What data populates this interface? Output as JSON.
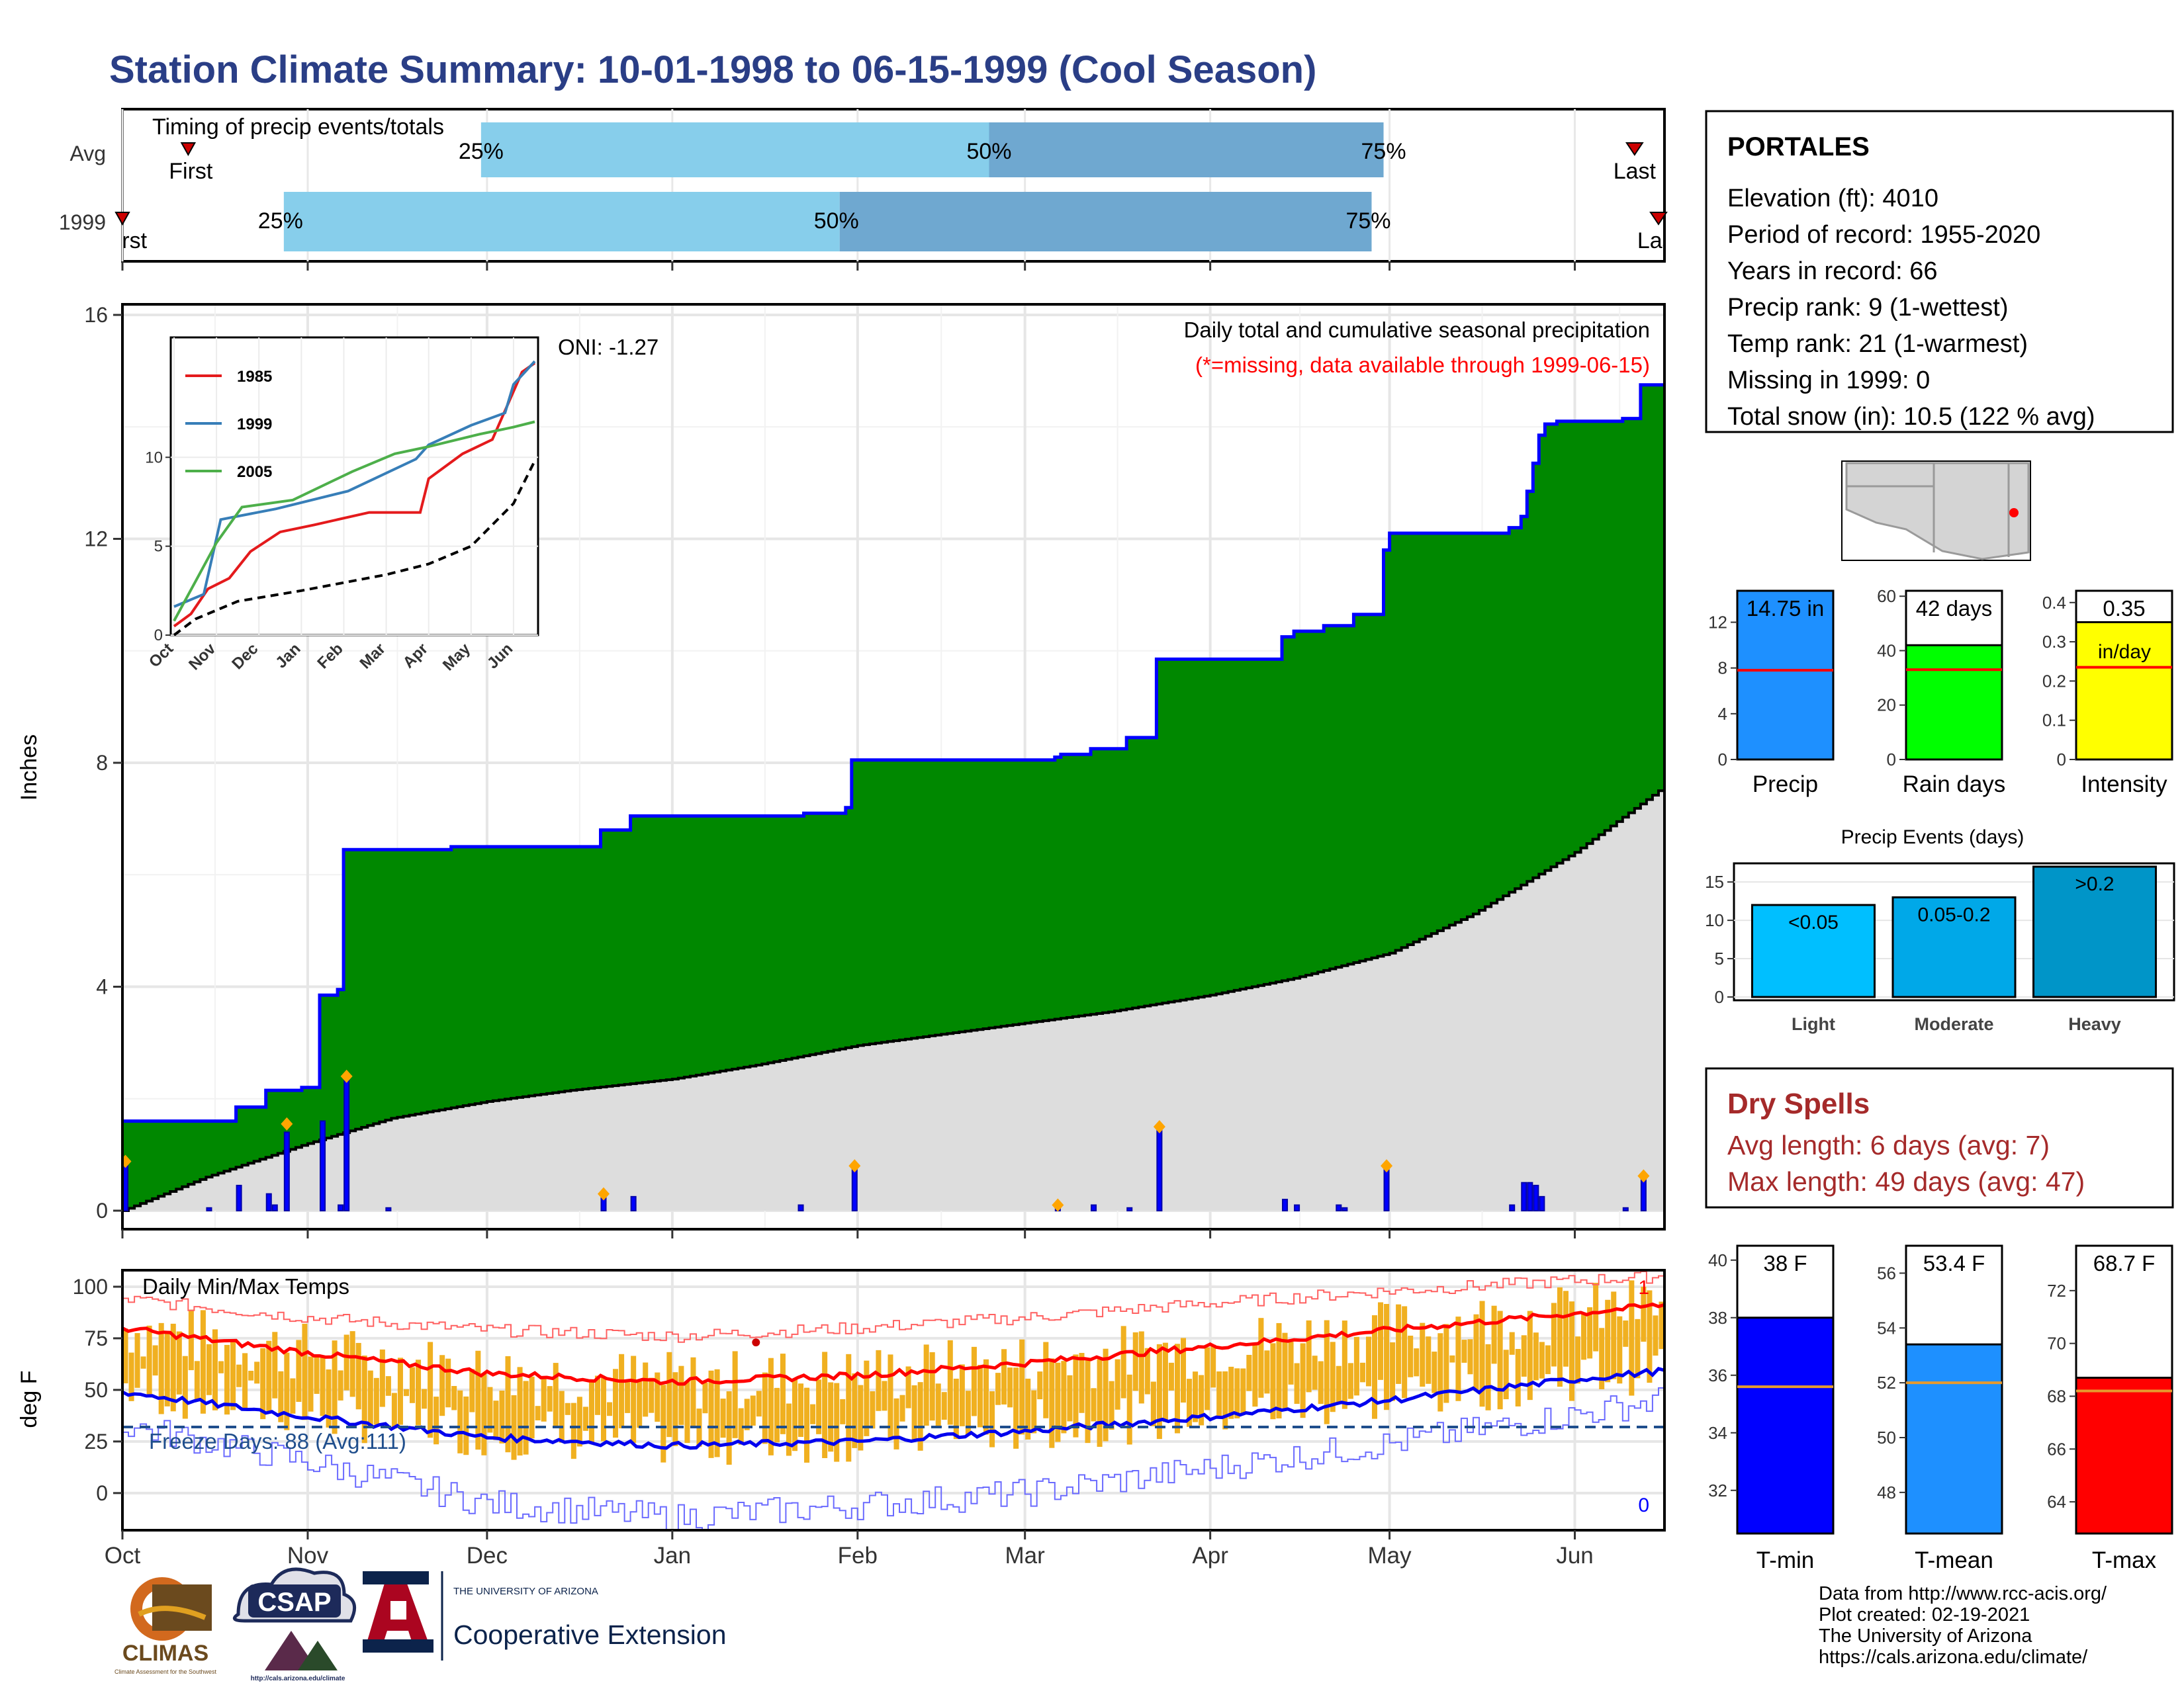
{
  "title": "Station Climate Summary: 10-01-1998 to 06-15-1999 (Cool Season)",
  "timing": {
    "label": "Timing of precip events/totals",
    "rows": [
      {
        "name": "Avg",
        "first_date": "1998-10-12",
        "last_date": "1999-06-11",
        "q25": "1998-11-30",
        "q50": "1999-02-23",
        "q75": "1999-04-30"
      },
      {
        "name": "1999",
        "first_date": "1998-10-01",
        "last_date": "1999-06-15",
        "q25": "1998-10-28",
        "q50": "1999-01-29",
        "q75": "1999-04-28"
      }
    ],
    "first_label": "First",
    "last_label": "Last",
    "pct_labels": [
      "25%",
      "50%",
      "75%"
    ],
    "colors": {
      "light": "#87ceeb",
      "dark": "#6fa8d0"
    }
  },
  "main_chart": {
    "ylabel": "Inches",
    "yticks": [
      0,
      4,
      8,
      12,
      16
    ],
    "ylim": [
      0,
      16
    ],
    "top_label": "Daily total and cumulative seasonal precipitation",
    "missing_note": "(*=missing, data available through 1999-06-15)",
    "oni": "ONI: -1.27",
    "months": [
      "Oct",
      "Nov",
      "Dec",
      "Jan",
      "Feb",
      "Mar",
      "Apr",
      "May",
      "Jun"
    ],
    "colors": {
      "cumulative": "#008800",
      "outline": "#0000ff",
      "normal": "#dddddd",
      "bars": "#0000ff",
      "diamond": "#ffa500"
    }
  },
  "chart_data": [
    {
      "type": "area",
      "name": "cumulative-precip-1999",
      "x_start": "1998-10-01",
      "steps": [
        [
          "1998-10-01",
          1.6
        ],
        [
          "1998-10-20",
          1.85
        ],
        [
          "1998-10-21",
          1.85
        ],
        [
          "1998-10-25",
          2.15
        ],
        [
          "1998-10-26",
          2.15
        ],
        [
          "1998-10-31",
          2.2
        ],
        [
          "1998-11-01",
          2.2
        ],
        [
          "1998-11-03",
          3.85
        ],
        [
          "1998-11-06",
          3.95
        ],
        [
          "1998-11-07",
          6.45
        ],
        [
          "1998-11-25",
          6.5
        ],
        [
          "1998-12-20",
          6.8
        ],
        [
          "1998-12-25",
          7.05
        ],
        [
          "1999-01-22",
          7.05
        ],
        [
          "1999-01-23",
          7.1
        ],
        [
          "1999-01-30",
          7.2
        ],
        [
          "1999-01-31",
          8.05
        ],
        [
          "1999-03-06",
          8.1
        ],
        [
          "1999-03-07",
          8.15
        ],
        [
          "1999-03-12",
          8.25
        ],
        [
          "1999-03-18",
          8.45
        ],
        [
          "1999-03-23",
          9.85
        ],
        [
          "1999-04-10",
          9.85
        ],
        [
          "1999-04-13",
          10.25
        ],
        [
          "1999-04-15",
          10.35
        ],
        [
          "1999-04-20",
          10.45
        ],
        [
          "1999-04-25",
          10.65
        ],
        [
          "1999-04-30",
          11.8
        ],
        [
          "1999-05-01",
          12.1
        ],
        [
          "1999-05-21",
          12.2
        ],
        [
          "1999-05-23",
          12.4
        ],
        [
          "1999-05-24",
          12.85
        ],
        [
          "1999-05-25",
          13.35
        ],
        [
          "1999-05-26",
          13.85
        ],
        [
          "1999-05-27",
          14.05
        ],
        [
          "1999-05-29",
          14.1
        ],
        [
          "1999-06-09",
          14.15
        ],
        [
          "1999-06-12",
          14.75
        ],
        [
          "1999-06-15",
          14.75
        ]
      ],
      "total": 14.75
    },
    {
      "type": "area",
      "name": "normal-cumulative-precip",
      "points": [
        [
          "1998-10-01",
          0.0
        ],
        [
          "1998-10-15",
          0.6
        ],
        [
          "1998-11-01",
          1.2
        ],
        [
          "1998-11-15",
          1.65
        ],
        [
          "1998-12-01",
          1.95
        ],
        [
          "1998-12-15",
          2.15
        ],
        [
          "1999-01-01",
          2.35
        ],
        [
          "1999-01-15",
          2.6
        ],
        [
          "1999-02-01",
          2.95
        ],
        [
          "1999-02-15",
          3.15
        ],
        [
          "1999-03-01",
          3.35
        ],
        [
          "1999-03-15",
          3.55
        ],
        [
          "1999-04-01",
          3.85
        ],
        [
          "1999-04-15",
          4.15
        ],
        [
          "1999-05-01",
          4.6
        ],
        [
          "1999-05-15",
          5.3
        ],
        [
          "1999-06-01",
          6.4
        ],
        [
          "1999-06-15",
          7.5
        ]
      ]
    },
    {
      "type": "bar",
      "name": "daily-precip",
      "days": [
        [
          "1998-10-01",
          0.8
        ],
        [
          "1998-10-15",
          0.05
        ],
        [
          "1998-10-20",
          0.45
        ],
        [
          "1998-10-25",
          0.3
        ],
        [
          "1998-10-26",
          0.1
        ],
        [
          "1998-10-28",
          1.4
        ],
        [
          "1998-11-03",
          1.6
        ],
        [
          "1998-11-06",
          0.1
        ],
        [
          "1998-11-07",
          2.35
        ],
        [
          "1998-11-14",
          0.05
        ],
        [
          "1998-12-20",
          0.25
        ],
        [
          "1998-12-25",
          0.25
        ],
        [
          "1999-01-22",
          0.1
        ],
        [
          "1999-01-31",
          0.75
        ],
        [
          "1999-03-06",
          0.05
        ],
        [
          "1999-03-12",
          0.1
        ],
        [
          "1999-03-18",
          0.05
        ],
        [
          "1999-03-23",
          1.45
        ],
        [
          "1999-04-13",
          0.2
        ],
        [
          "1999-04-15",
          0.1
        ],
        [
          "1999-04-22",
          0.1
        ],
        [
          "1999-04-23",
          0.05
        ],
        [
          "1999-04-30",
          0.75
        ],
        [
          "1999-05-21",
          0.1
        ],
        [
          "1999-05-23",
          0.5
        ],
        [
          "1999-05-24",
          0.5
        ],
        [
          "1999-05-25",
          0.45
        ],
        [
          "1999-05-26",
          0.25
        ],
        [
          "1999-06-09",
          0.05
        ],
        [
          "1999-06-12",
          0.55
        ]
      ],
      "markers": [
        [
          "1998-10-01",
          0.88
        ],
        [
          "1998-10-28",
          1.55
        ],
        [
          "1998-11-07",
          2.4
        ],
        [
          "1998-12-20",
          0.3
        ],
        [
          "1999-01-31",
          0.8
        ],
        [
          "1999-03-06",
          0.1
        ],
        [
          "1999-03-23",
          1.5
        ],
        [
          "1999-04-30",
          0.8
        ],
        [
          "1999-06-12",
          0.62
        ]
      ]
    },
    {
      "type": "line",
      "name": "temps",
      "title": "Daily Min/Max Temps",
      "ylabel": "deg F",
      "yticks": [
        0,
        25,
        50,
        75,
        100
      ],
      "ylim": [
        -18,
        108
      ],
      "freeze_line": 32,
      "freeze_label": "Freeze Days: 88 (Avg:111)",
      "record_max_count": "1",
      "record_min_count": "0",
      "avg_max": [
        [
          "1998-10-01",
          80
        ],
        [
          "1998-11-01",
          68
        ],
        [
          "1998-12-01",
          58
        ],
        [
          "1999-01-01",
          54
        ],
        [
          "1999-02-01",
          57
        ],
        [
          "1999-03-01",
          63
        ],
        [
          "1999-04-01",
          71
        ],
        [
          "1999-05-01",
          79
        ],
        [
          "1999-06-01",
          87
        ],
        [
          "1999-06-15",
          91
        ]
      ],
      "avg_min": [
        [
          "1998-10-01",
          49
        ],
        [
          "1998-11-01",
          37
        ],
        [
          "1998-12-01",
          27
        ],
        [
          "1999-01-01",
          23
        ],
        [
          "1999-02-01",
          25
        ],
        [
          "1999-03-01",
          30
        ],
        [
          "1999-04-01",
          37
        ],
        [
          "1999-05-01",
          45
        ],
        [
          "1999-06-01",
          55
        ],
        [
          "1999-06-15",
          59
        ]
      ],
      "record_max": [
        [
          "1998-10-01",
          94
        ],
        [
          "1998-11-01",
          85
        ],
        [
          "1998-12-01",
          79
        ],
        [
          "1999-01-01",
          76
        ],
        [
          "1999-02-01",
          80
        ],
        [
          "1999-03-01",
          85
        ],
        [
          "1999-04-01",
          92
        ],
        [
          "1999-05-01",
          98
        ],
        [
          "1999-06-01",
          103
        ],
        [
          "1999-06-15",
          105
        ]
      ],
      "record_min": [
        [
          "1998-10-01",
          33
        ],
        [
          "1998-11-01",
          15
        ],
        [
          "1998-12-01",
          -5
        ],
        [
          "1999-01-01",
          -12
        ],
        [
          "1999-02-01",
          -6
        ],
        [
          "1999-03-01",
          0
        ],
        [
          "1999-04-01",
          12
        ],
        [
          "1999-05-01",
          24
        ],
        [
          "1999-06-01",
          38
        ],
        [
          "1999-06-15",
          45
        ]
      ],
      "bar_color": "#f0b020"
    },
    {
      "type": "bar",
      "name": "season-precip-stats",
      "categories": [
        "Precip",
        "Rain days",
        "Intensity"
      ],
      "values": [
        14.75,
        42,
        0.35
      ],
      "averages": [
        7.8,
        33,
        0.235
      ],
      "value_labels": [
        "14.75 in",
        "42 days",
        "0.35"
      ],
      "unit_note": "in/day",
      "ylims": [
        [
          0,
          14.75
        ],
        [
          0,
          62
        ],
        [
          0,
          0.43
        ]
      ],
      "yticks": [
        [
          0,
          4,
          8,
          12
        ],
        [
          0,
          20,
          40,
          60
        ],
        [
          0.0,
          0.1,
          0.2,
          0.3,
          0.4
        ]
      ],
      "colors": [
        "#1e90ff",
        "#00ff00",
        "#ffff00"
      ]
    },
    {
      "type": "bar",
      "name": "precip-events",
      "title": "Precip Events (days)",
      "categories": [
        "Light",
        "Moderate",
        "Heavy"
      ],
      "values": [
        12,
        13,
        17
      ],
      "value_labels": [
        "<0.05",
        "0.05-0.2",
        ">0.2"
      ],
      "ylim": [
        0,
        17
      ],
      "yticks": [
        0,
        5,
        10,
        15
      ],
      "colors": [
        "#00bfff",
        "#00a8e8",
        "#0095c8"
      ]
    },
    {
      "type": "bar",
      "name": "season-temp-stats",
      "categories": [
        "T-min",
        "T-mean",
        "T-max"
      ],
      "values": [
        38,
        53.4,
        68.7
      ],
      "averages": [
        35.6,
        52.0,
        68.2
      ],
      "value_labels": [
        "38 F",
        "53.4 F",
        "68.7 F"
      ],
      "ylims": [
        [
          30.5,
          40.5
        ],
        [
          46.5,
          57
        ],
        [
          62.8,
          73.7
        ]
      ],
      "yticks": [
        [
          32,
          34,
          36,
          38,
          40
        ],
        [
          48,
          50,
          52,
          54,
          56
        ],
        [
          64,
          66,
          68,
          70,
          72
        ]
      ],
      "colors": [
        "#0000ff",
        "#1e90ff",
        "#ff0000"
      ]
    },
    {
      "type": "line",
      "name": "inset-cumulative",
      "ylim": [
        0,
        16
      ],
      "yticks": [
        0,
        5,
        10
      ],
      "xticks": [
        "Oct",
        "Nov",
        "Dec",
        "Jan",
        "Feb",
        "Mar",
        "Apr",
        "May",
        "Jun"
      ],
      "series": [
        {
          "name": "1985",
          "color": "#e41a1c",
          "points": [
            [
              0,
              0.5
            ],
            [
              0.4,
              1.2
            ],
            [
              0.8,
              2.6
            ],
            [
              1.3,
              3.2
            ],
            [
              1.8,
              4.7
            ],
            [
              2.5,
              5.8
            ],
            [
              3.3,
              6.2
            ],
            [
              4.6,
              6.9
            ],
            [
              5.8,
              6.9
            ],
            [
              6.0,
              8.8
            ],
            [
              6.8,
              10.2
            ],
            [
              7.5,
              11.0
            ],
            [
              8.2,
              14.8
            ],
            [
              8.5,
              15.3
            ]
          ]
        },
        {
          "name": "1999",
          "color": "#377eb8",
          "points": [
            [
              0,
              1.6
            ],
            [
              0.7,
              2.3
            ],
            [
              1.1,
              6.5
            ],
            [
              2.4,
              7.1
            ],
            [
              4.1,
              8.1
            ],
            [
              5.7,
              9.9
            ],
            [
              6.0,
              10.7
            ],
            [
              7.0,
              11.8
            ],
            [
              7.8,
              12.5
            ],
            [
              8.0,
              14.1
            ],
            [
              8.5,
              15.4
            ]
          ]
        },
        {
          "name": "2005",
          "color": "#4daf4a",
          "points": [
            [
              0,
              0.8
            ],
            [
              0.5,
              3.0
            ],
            [
              1.0,
              5.2
            ],
            [
              1.6,
              7.2
            ],
            [
              2.8,
              7.6
            ],
            [
              4.2,
              9.2
            ],
            [
              5.2,
              10.2
            ],
            [
              6.0,
              10.6
            ],
            [
              7.2,
              11.3
            ],
            [
              8.0,
              11.7
            ],
            [
              8.5,
              12.0
            ]
          ]
        },
        {
          "name": "",
          "color": "#000000",
          "dashed": true,
          "points": [
            [
              0,
              0
            ],
            [
              0.5,
              0.9
            ],
            [
              1.5,
              1.9
            ],
            [
              3.0,
              2.5
            ],
            [
              5.0,
              3.4
            ],
            [
              6.0,
              4.0
            ],
            [
              7.0,
              5.0
            ],
            [
              8.0,
              7.4
            ],
            [
              8.5,
              9.8
            ]
          ]
        }
      ]
    }
  ],
  "station": {
    "name": "PORTALES",
    "lines": [
      "Elevation (ft): 4010",
      "Period of record: 1955-2020",
      "Years in record: 66",
      "Precip rank: 9 (1-wettest)",
      "Temp rank: 21 (1-warmest)",
      "Missing in 1999: 0",
      "Total snow (in): 10.5 (122 % avg)"
    ]
  },
  "dry_spells": {
    "title": "Dry Spells",
    "avg": "Avg length: 6 days (avg: 7)",
    "max": "Max length: 49 days (avg: 47)",
    "color": "#a52a2a"
  },
  "footer": {
    "lines": [
      "Data from http://www.rcc-acis.org/",
      "Plot created: 02-19-2021",
      "The University of Arizona",
      "https://cals.arizona.edu/climate/"
    ],
    "logos": {
      "climas": "CLIMAS",
      "climas_sub": "Climate Assessment for the Southwest",
      "csap": "CSAP",
      "csap_url": "http://cals.arizona.edu/climate",
      "ua_small": "THE UNIVERSITY OF ARIZONA",
      "ua_big": "Cooperative Extension"
    }
  }
}
